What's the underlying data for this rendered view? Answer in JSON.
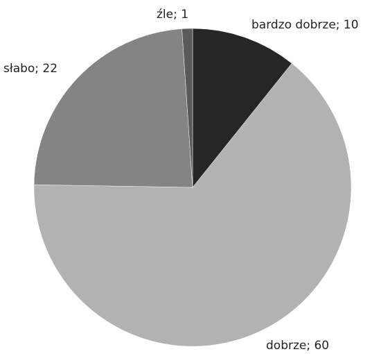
{
  "chart_data": {
    "type": "pie",
    "title": "",
    "slices": [
      {
        "label": "bardzo dobrze",
        "value": 10,
        "display": "bardzo dobrze; 10",
        "color": "#262626"
      },
      {
        "label": "dobrze",
        "value": 60,
        "display": "dobrze; 60",
        "color": "#b2b2b2"
      },
      {
        "label": "słabo",
        "value": 22,
        "display": "słabo; 22",
        "color": "#848484"
      },
      {
        "label": "źle",
        "value": 1,
        "display": "źle; 1",
        "color": "#5a5a5a"
      }
    ],
    "start_angle": "12 o'clock",
    "direction": "clockwise",
    "legend": "none",
    "data_labels": "outside, category; value"
  }
}
